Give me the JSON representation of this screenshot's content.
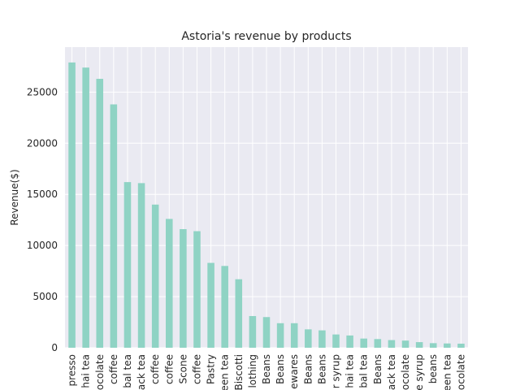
{
  "chart_data": {
    "type": "bar",
    "title": "Astoria's revenue by products",
    "xlabel": "",
    "ylabel": "Revenue($)",
    "ylim": [
      0,
      29400
    ],
    "yticks": [
      0,
      5000,
      10000,
      15000,
      20000,
      25000
    ],
    "grid": true,
    "bar_color": "#8fd3c4",
    "background": "#eaeaf2",
    "categories": [
      "presso",
      "hai tea",
      "ocolate",
      "coffee",
      "bal tea",
      "ack tea",
      "coffee",
      "coffee",
      "Scone",
      "coffee",
      "Pastry",
      "een tea",
      "Biscotti",
      "lothing",
      "Beans",
      "Beans",
      "ewares",
      "Beans",
      "Beans",
      "r syrup",
      "hai tea",
      "bal tea",
      "Beans",
      "ack tea",
      "ocolate",
      "e syrup",
      "beans",
      "een tea",
      "ocolate"
    ],
    "values": [
      27900,
      27400,
      26300,
      23800,
      16200,
      16100,
      14000,
      12600,
      11600,
      11400,
      8300,
      8000,
      6700,
      3100,
      3000,
      2400,
      2400,
      1800,
      1700,
      1300,
      1200,
      900,
      850,
      750,
      700,
      550,
      450,
      420,
      400
    ]
  }
}
